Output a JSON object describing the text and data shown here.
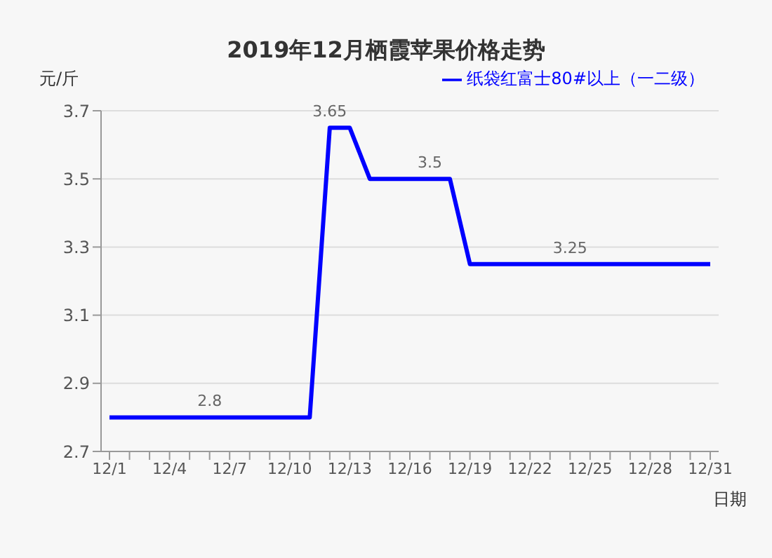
{
  "chart_data": {
    "type": "line",
    "title": "2019年12月栖霞苹果价格走势",
    "xlabel": "日期",
    "ylabel": "元/斤",
    "categories": [
      "12/1",
      null,
      null,
      "12/4",
      null,
      null,
      "12/7",
      null,
      null,
      "12/10",
      null,
      null,
      "12/13",
      null,
      null,
      "12/16",
      null,
      null,
      "12/19",
      null,
      null,
      "12/22",
      null,
      null,
      "12/25",
      null,
      null,
      "12/28",
      null,
      null,
      "12/31"
    ],
    "series": [
      {
        "name": "纸袋红富士80#以上（一二级）",
        "color": "#0000ff",
        "values": [
          2.8,
          2.8,
          2.8,
          2.8,
          2.8,
          2.8,
          2.8,
          2.8,
          2.8,
          2.8,
          2.8,
          3.65,
          3.65,
          3.5,
          3.5,
          3.5,
          3.5,
          3.5,
          3.25,
          3.25,
          3.25,
          3.25,
          3.25,
          3.25,
          3.25,
          3.25,
          3.25,
          3.25,
          3.25,
          3.25,
          3.25
        ],
        "value_labels": [
          null,
          null,
          null,
          null,
          null,
          "2.8",
          null,
          null,
          null,
          null,
          null,
          "3.65",
          null,
          null,
          null,
          null,
          "3.5",
          null,
          null,
          null,
          null,
          null,
          null,
          "3.25",
          null,
          null,
          null,
          null,
          null,
          null,
          null
        ]
      }
    ],
    "ylim": [
      2.7,
      3.7
    ],
    "yticks": [
      2.7,
      2.9,
      3.1,
      3.3,
      3.5,
      3.7
    ],
    "grid": "y",
    "legend": "top right",
    "marker": "none",
    "line_style": "solid"
  }
}
